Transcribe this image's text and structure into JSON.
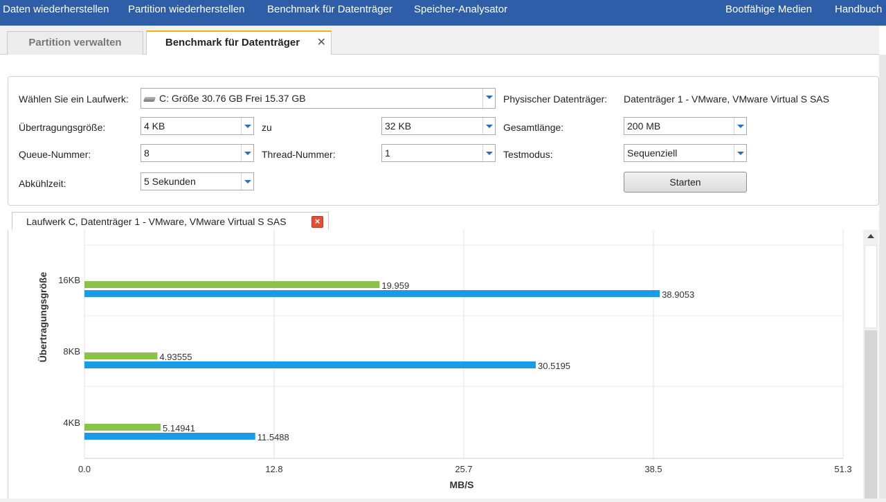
{
  "topnav": {
    "items": [
      "Daten wiederherstellen",
      "Partition wiederherstellen",
      "Benchmark für Datenträger",
      "Speicher-Analysator"
    ],
    "right_items": [
      "Bootfähige Medien",
      "Handbuch"
    ]
  },
  "tabs": [
    {
      "label": "Partition verwalten"
    },
    {
      "label": "Benchmark für Datenträger",
      "close": "✕"
    }
  ],
  "settings": {
    "drive_label": "Wählen Sie ein Laufwerk:",
    "drive_value": "C:  Größe 30.76 GB  Frei 15.37 GB",
    "physical_label": "Physischer Datenträger:",
    "physical_value": "Datenträger 1 - VMware, VMware Virtual S SAS",
    "transfer_label": "Übertragungsgröße:",
    "transfer_from": "4 KB",
    "to_label": "zu",
    "transfer_to": "32 KB",
    "total_label": "Gesamtlänge:",
    "total_value": "200 MB",
    "queue_label": "Queue-Nummer:",
    "queue_value": "8",
    "thread_label": "Thread-Nummer:",
    "thread_value": "1",
    "testmode_label": "Testmodus:",
    "testmode_value": "Sequenziell",
    "cooldown_label": "Abkühlzeit:",
    "cooldown_value": "5 Sekunden",
    "start_label": "Starten"
  },
  "result_tab": {
    "label": "Laufwerk C, Datenträger 1 - VMware, VMware Virtual S SAS",
    "close": "×"
  },
  "colors": {
    "series_green": "#8bc34a",
    "series_blue": "#1a9be6",
    "nav_bg": "#2f5ea8"
  },
  "chart_data": {
    "type": "bar",
    "orientation": "horizontal",
    "categories": [
      "16KB",
      "8KB",
      "4KB"
    ],
    "series": [
      {
        "values": [
          19.959,
          4.93555,
          5.14941
        ],
        "labels": [
          "19.959",
          "4.93555",
          "5.14941"
        ]
      },
      {
        "values": [
          38.9053,
          30.5195,
          11.5488
        ],
        "labels": [
          "38.9053",
          "30.5195",
          "11.5488"
        ]
      }
    ],
    "xlabel": "MB/S",
    "ylabel": "Übertragungsgröße",
    "xlim": [
      0,
      51.3
    ],
    "xticks": [
      "0.0",
      "12.8",
      "25.7",
      "38.5",
      "51.3"
    ],
    "grid": true
  }
}
